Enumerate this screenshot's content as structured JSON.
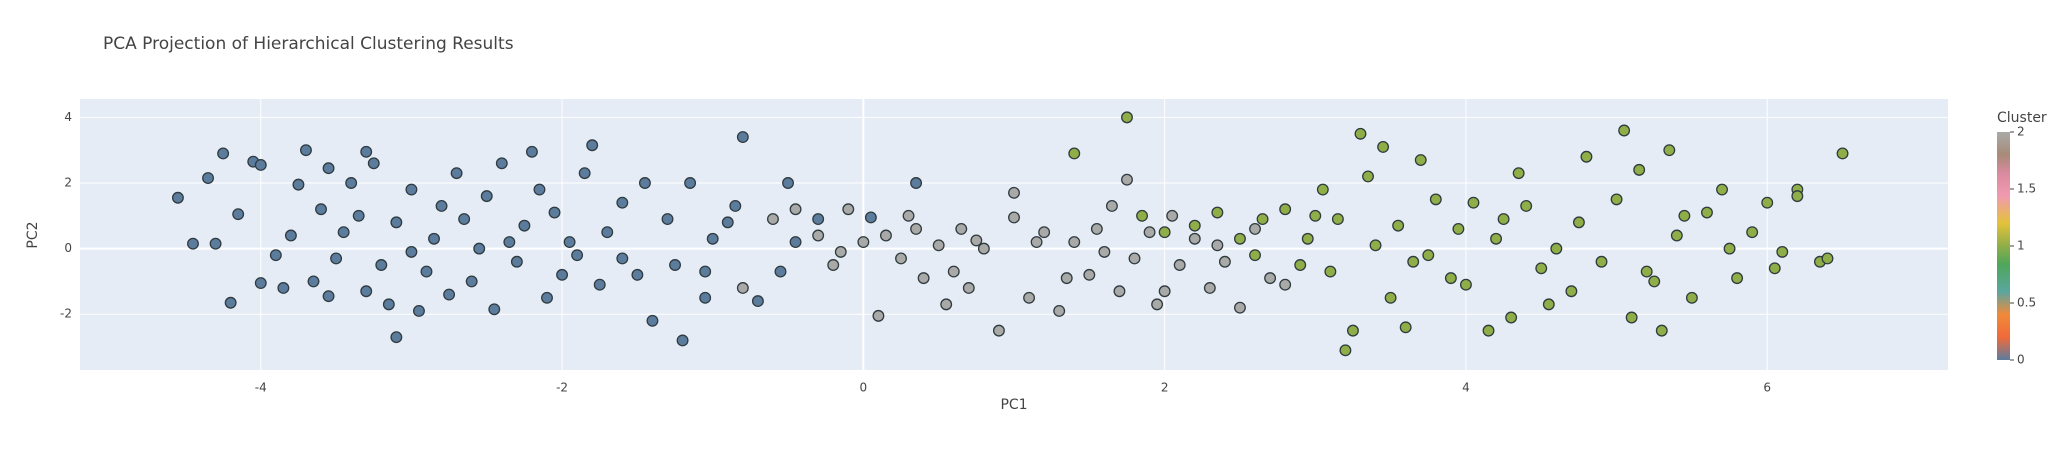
{
  "chart_data": {
    "type": "scatter",
    "title": "PCA Projection of Hierarchical Clustering Results",
    "x_label": "PC1",
    "y_label": "PC2",
    "xlim": [
      -5.2,
      7.2
    ],
    "xticks": [
      -4,
      -2,
      0,
      2,
      4,
      6
    ],
    "ylim": [
      -3.7,
      4.56
    ],
    "yticks": [
      -2,
      0,
      2,
      4
    ],
    "grid": true,
    "colorbar": {
      "title": "Cluster",
      "ticks": [
        0,
        0.5,
        1,
        1.5,
        2
      ],
      "range": [
        0,
        2
      ]
    },
    "colorscale": [
      [
        0,
        "#5c7c9e"
      ],
      [
        0.1,
        "#f06a3a"
      ],
      [
        0.2,
        "#f08a3a"
      ],
      [
        0.3,
        "#5aa6a0"
      ],
      [
        0.42,
        "#4fa65a"
      ],
      [
        0.5,
        "#8fae48"
      ],
      [
        0.6,
        "#e3c23a"
      ],
      [
        0.72,
        "#f09ab0"
      ],
      [
        0.82,
        "#d98aa0"
      ],
      [
        0.9,
        "#a88a78"
      ],
      [
        1,
        "#a9aaa8"
      ]
    ],
    "series": [
      {
        "cluster": 0,
        "x": [
          -4.55,
          -4.35,
          -4.25,
          -4.05,
          -4.0,
          -4.3,
          -4.15,
          -4.2,
          -4.0,
          -3.85,
          -3.75,
          -3.7,
          -3.55,
          -3.6,
          -3.4,
          -3.3,
          -3.25,
          -3.1,
          -3.5,
          -3.45,
          -3.3,
          -3.2,
          -3.1,
          -3.0,
          -2.95,
          -2.9,
          -2.85,
          -2.8,
          -2.7,
          -2.6,
          -2.55,
          -2.5,
          -2.4,
          -2.3,
          -2.25,
          -2.2,
          -2.1,
          -2.05,
          -1.9,
          -1.85,
          -1.8,
          -1.75,
          -1.7,
          -1.6,
          -1.5,
          -1.45,
          -1.4,
          -1.3,
          -1.2,
          -1.15,
          -1.05,
          -1.0,
          -0.8,
          -0.85,
          -0.7,
          -0.5,
          -0.45,
          -0.55,
          0.35,
          -3.9,
          -3.65,
          -3.0,
          -2.75,
          -2.45,
          -2.0,
          -1.95,
          -1.6,
          -1.25,
          -3.35,
          -2.65,
          -2.15,
          -4.45,
          -3.8,
          -3.55,
          -2.35,
          -1.05,
          -0.9,
          -0.3,
          0.05,
          -3.15
        ],
        "values": [
          1.55,
          2.15,
          2.9,
          2.65,
          2.55,
          0.15,
          1.05,
          -1.65,
          -1.05,
          -1.2,
          1.95,
          3.0,
          2.45,
          1.2,
          2.0,
          2.95,
          2.6,
          -2.7,
          -0.3,
          0.5,
          -1.3,
          -0.5,
          0.8,
          1.8,
          -1.9,
          -0.7,
          0.3,
          1.3,
          2.3,
          -1.0,
          0.0,
          1.6,
          2.6,
          -0.4,
          0.7,
          2.95,
          -1.5,
          1.1,
          -0.2,
          2.3,
          3.15,
          -1.1,
          0.5,
          1.4,
          -0.8,
          2.0,
          -2.2,
          0.9,
          -2.8,
          2.0,
          -1.5,
          0.3,
          3.4,
          1.3,
          -1.6,
          2.0,
          0.2,
          -0.7,
          2.0,
          -0.2,
          -1.0,
          -0.1,
          -1.4,
          -1.85,
          -0.8,
          0.2,
          -0.3,
          -0.5,
          1.0,
          0.9,
          1.8,
          0.15,
          0.4,
          -1.45,
          0.2,
          -0.7,
          0.8,
          0.9,
          0.95,
          -1.7
        ]
      },
      {
        "cluster": 2,
        "x": [
          -0.8,
          -0.6,
          -0.45,
          -0.3,
          -0.2,
          -0.1,
          0.0,
          0.1,
          0.15,
          0.25,
          0.35,
          0.4,
          0.5,
          0.55,
          0.65,
          0.7,
          0.8,
          0.9,
          1.0,
          1.1,
          1.2,
          1.3,
          1.4,
          1.5,
          1.55,
          1.65,
          1.7,
          1.75,
          1.8,
          1.9,
          1.95,
          2.05,
          2.1,
          2.2,
          2.3,
          2.4,
          2.5,
          2.6,
          2.7,
          2.8,
          0.6,
          1.0,
          0.3,
          -0.15,
          1.35,
          2.0,
          0.75,
          1.15,
          2.35,
          1.6
        ],
        "values": [
          -1.2,
          0.9,
          1.2,
          0.4,
          -0.5,
          1.2,
          0.2,
          -2.05,
          0.4,
          -0.3,
          0.6,
          -0.9,
          0.1,
          -1.7,
          0.6,
          -1.2,
          0.0,
          -2.5,
          1.7,
          -1.5,
          0.5,
          -1.9,
          0.2,
          -0.8,
          0.6,
          1.3,
          -1.3,
          2.1,
          -0.3,
          0.5,
          -1.7,
          1.0,
          -0.5,
          0.3,
          -1.2,
          -0.4,
          -1.8,
          0.6,
          -0.9,
          -1.1,
          -0.7,
          0.95,
          1.0,
          -0.1,
          -0.9,
          -1.3,
          0.25,
          0.2,
          0.1,
          -0.1
        ]
      },
      {
        "cluster": 1,
        "x": [
          1.4,
          1.75,
          1.85,
          2.0,
          2.2,
          2.35,
          2.5,
          2.65,
          2.8,
          2.95,
          3.05,
          3.1,
          3.2,
          3.25,
          3.3,
          3.35,
          3.4,
          3.45,
          3.5,
          3.55,
          3.6,
          3.7,
          3.75,
          3.8,
          3.9,
          3.95,
          4.0,
          4.05,
          4.15,
          4.2,
          4.3,
          4.35,
          4.4,
          4.5,
          4.6,
          4.7,
          4.8,
          4.9,
          5.0,
          5.05,
          5.1,
          5.15,
          5.2,
          5.3,
          5.35,
          5.4,
          5.5,
          5.6,
          5.7,
          5.8,
          5.9,
          6.0,
          6.1,
          6.2,
          6.35,
          6.2,
          6.4,
          6.5,
          4.25,
          3.15,
          2.9,
          4.75,
          5.25,
          5.75,
          3.65,
          4.55,
          3.0,
          5.45,
          6.05,
          2.6
        ],
        "values": [
          2.9,
          4.0,
          1.0,
          0.5,
          0.7,
          1.1,
          0.3,
          0.9,
          1.2,
          0.3,
          1.8,
          -0.7,
          -3.1,
          -2.5,
          3.5,
          2.2,
          0.1,
          3.1,
          -1.5,
          0.7,
          -2.4,
          2.7,
          -0.2,
          1.5,
          -0.9,
          0.6,
          -1.1,
          1.4,
          -2.5,
          0.3,
          -2.1,
          2.3,
          1.3,
          -0.6,
          0.0,
          -1.3,
          2.8,
          -0.4,
          1.5,
          3.6,
          -2.1,
          2.4,
          -0.7,
          -2.5,
          3.0,
          0.4,
          -1.5,
          1.1,
          1.8,
          -0.9,
          0.5,
          1.4,
          -0.1,
          1.8,
          -0.4,
          1.6,
          -0.3,
          2.9,
          0.9,
          0.9,
          -0.5,
          0.8,
          -1.0,
          0.0,
          -0.4,
          -1.7,
          1.0,
          1.0,
          -0.6,
          -0.2
        ]
      }
    ]
  }
}
